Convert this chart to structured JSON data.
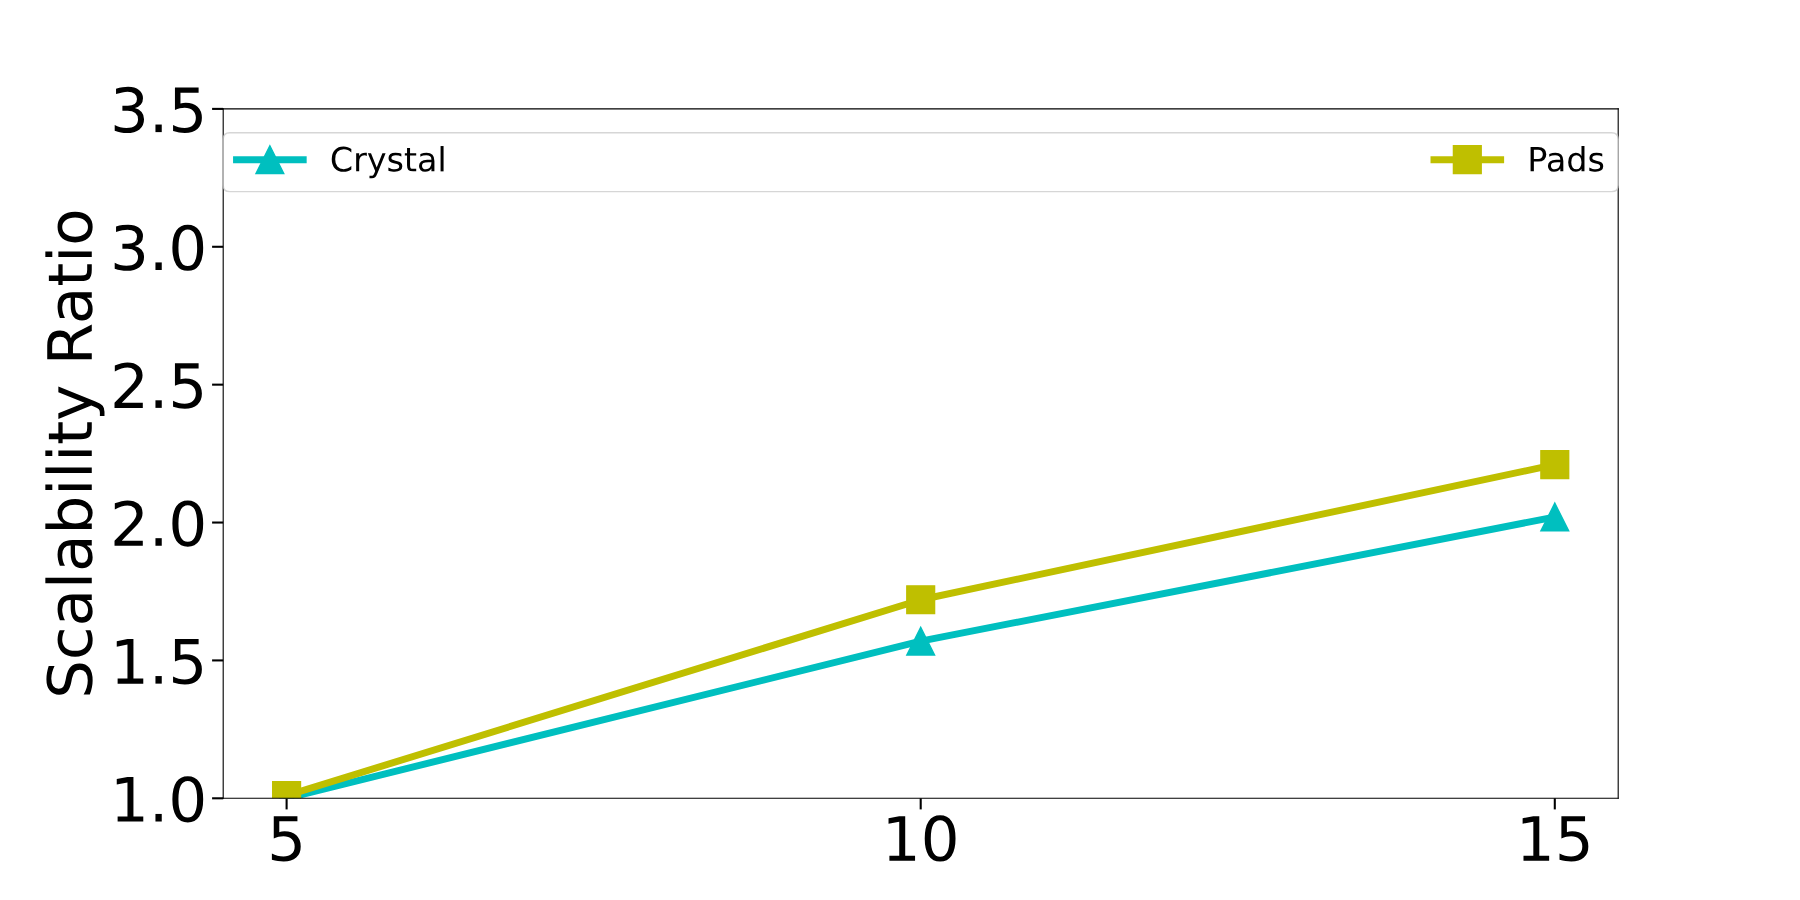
{
  "chart_data": {
    "type": "line",
    "ylabel": "Scalability Ratio",
    "x": [
      5,
      10,
      15
    ],
    "series": [
      {
        "name": "Crystal",
        "color": "#00bfbf",
        "values": [
          1.0,
          1.57,
          2.02
        ],
        "marker": "triangle"
      },
      {
        "name": "Pads",
        "color": "#bfbf00",
        "values": [
          1.01,
          1.72,
          2.21
        ],
        "marker": "square"
      }
    ],
    "xlim": [
      4.5,
      15.5
    ],
    "xticks": [
      5,
      10,
      15
    ],
    "ylim": [
      1.0,
      3.5
    ],
    "yticks": [
      {
        "value": 1,
        "label": "1.0"
      },
      1.5,
      {
        "value": 2,
        "label": "2.0"
      },
      2.5,
      {
        "value": 3,
        "label": "3.0"
      },
      3.5
    ],
    "grid": false,
    "legend": "top",
    "line_style": "solid"
  }
}
